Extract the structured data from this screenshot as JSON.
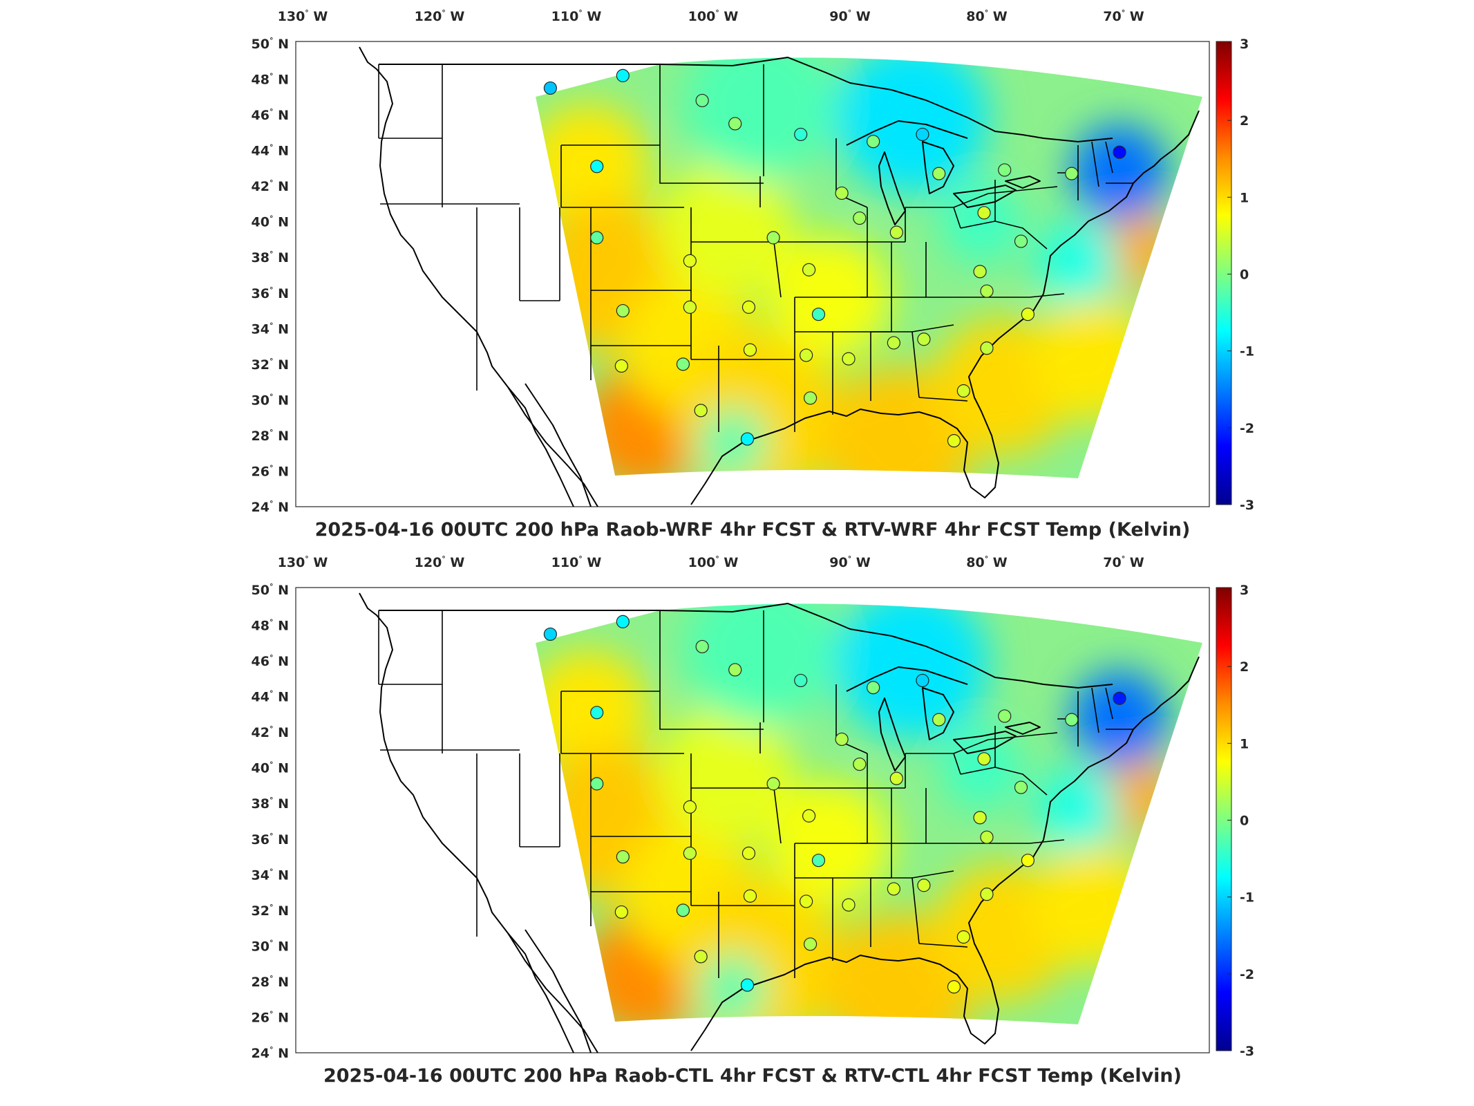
{
  "colorbar": {
    "ticks": [
      "3",
      "2",
      "1",
      "0",
      "-1",
      "-2",
      "-3"
    ],
    "colors": [
      "#800000",
      "#ff0000",
      "#ff8c00",
      "#ffff00",
      "#80ff80",
      "#00ffff",
      "#0080ff",
      "#0000ff",
      "#00008f"
    ]
  },
  "axes": {
    "lon_labels": [
      {
        "deg": "130",
        "hem": "W"
      },
      {
        "deg": "120",
        "hem": "W"
      },
      {
        "deg": "110",
        "hem": "W"
      },
      {
        "deg": "100",
        "hem": "W"
      },
      {
        "deg": "90",
        "hem": "W"
      },
      {
        "deg": "80",
        "hem": "W"
      },
      {
        "deg": "70",
        "hem": "W"
      }
    ],
    "lat_labels": [
      {
        "deg": "50",
        "hem": "N"
      },
      {
        "deg": "48",
        "hem": "N"
      },
      {
        "deg": "46",
        "hem": "N"
      },
      {
        "deg": "44",
        "hem": "N"
      },
      {
        "deg": "42",
        "hem": "N"
      },
      {
        "deg": "40",
        "hem": "N"
      },
      {
        "deg": "38",
        "hem": "N"
      },
      {
        "deg": "36",
        "hem": "N"
      },
      {
        "deg": "34",
        "hem": "N"
      },
      {
        "deg": "32",
        "hem": "N"
      },
      {
        "deg": "30",
        "hem": "N"
      },
      {
        "deg": "28",
        "hem": "N"
      },
      {
        "deg": "26",
        "hem": "N"
      },
      {
        "deg": "24",
        "hem": "N"
      }
    ]
  },
  "panels": [
    {
      "title": "2025-04-16 00UTC 200 hPa Raob-WRF 4hr FCST & RTV-WRF 4hr FCST Temp (Kelvin)",
      "stations": [
        {
          "lon": -111.9,
          "lat": 47.5,
          "value": -1.1
        },
        {
          "lon": -106.6,
          "lat": 48.2,
          "value": -0.8
        },
        {
          "lon": -100.8,
          "lat": 46.8,
          "value": -0.1
        },
        {
          "lon": -98.4,
          "lat": 45.5,
          "value": 0.1
        },
        {
          "lon": -93.6,
          "lat": 44.9,
          "value": -0.5
        },
        {
          "lon": -108.5,
          "lat": 43.1,
          "value": -0.7
        },
        {
          "lon": -88.3,
          "lat": 44.5,
          "value": 0.0
        },
        {
          "lon": -84.7,
          "lat": 44.9,
          "value": -1.0
        },
        {
          "lon": -83.5,
          "lat": 42.7,
          "value": 0.2
        },
        {
          "lon": -78.7,
          "lat": 42.9,
          "value": 0.0
        },
        {
          "lon": -73.8,
          "lat": 42.7,
          "value": 0.1
        },
        {
          "lon": -70.3,
          "lat": 43.9,
          "value": -2.2
        },
        {
          "lon": -90.6,
          "lat": 41.6,
          "value": 0.3
        },
        {
          "lon": -108.5,
          "lat": 39.1,
          "value": -0.2
        },
        {
          "lon": -101.7,
          "lat": 37.8,
          "value": 0.6
        },
        {
          "lon": -95.6,
          "lat": 39.1,
          "value": 0.2
        },
        {
          "lon": -89.3,
          "lat": 40.2,
          "value": 0.2
        },
        {
          "lon": -86.6,
          "lat": 39.4,
          "value": 0.4
        },
        {
          "lon": -80.2,
          "lat": 40.5,
          "value": 0.5
        },
        {
          "lon": -77.5,
          "lat": 38.9,
          "value": 0.0
        },
        {
          "lon": -80.5,
          "lat": 37.2,
          "value": 0.4
        },
        {
          "lon": -93.0,
          "lat": 37.3,
          "value": 0.5
        },
        {
          "lon": -106.6,
          "lat": 35.0,
          "value": 0.2
        },
        {
          "lon": -101.7,
          "lat": 35.2,
          "value": 0.5
        },
        {
          "lon": -97.4,
          "lat": 35.2,
          "value": 0.6
        },
        {
          "lon": -92.3,
          "lat": 34.8,
          "value": -0.4
        },
        {
          "lon": -86.8,
          "lat": 33.2,
          "value": 0.4
        },
        {
          "lon": -84.6,
          "lat": 33.4,
          "value": 0.4
        },
        {
          "lon": -80.0,
          "lat": 36.1,
          "value": 0.3
        },
        {
          "lon": -77.0,
          "lat": 34.8,
          "value": 0.6
        },
        {
          "lon": -80.0,
          "lat": 32.9,
          "value": 0.4
        },
        {
          "lon": -106.7,
          "lat": 31.9,
          "value": 0.6
        },
        {
          "lon": -102.2,
          "lat": 32.0,
          "value": 0.0
        },
        {
          "lon": -97.3,
          "lat": 32.8,
          "value": 0.6
        },
        {
          "lon": -93.2,
          "lat": 32.5,
          "value": 0.5
        },
        {
          "lon": -90.1,
          "lat": 32.3,
          "value": 0.5
        },
        {
          "lon": -100.9,
          "lat": 29.4,
          "value": 0.5
        },
        {
          "lon": -97.5,
          "lat": 27.8,
          "value": -0.8
        },
        {
          "lon": -92.9,
          "lat": 30.1,
          "value": 0.2
        },
        {
          "lon": -81.7,
          "lat": 30.5,
          "value": 0.5
        },
        {
          "lon": -82.4,
          "lat": 27.7,
          "value": 0.6
        }
      ]
    },
    {
      "title": "2025-04-16 00UTC 200 hPa Raob-CTL 4hr FCST & RTV-CTL 4hr FCST Temp (Kelvin)",
      "stations": [
        {
          "lon": -111.9,
          "lat": 47.5,
          "value": -1.0
        },
        {
          "lon": -106.6,
          "lat": 48.2,
          "value": -0.8
        },
        {
          "lon": -100.8,
          "lat": 46.8,
          "value": 0.0
        },
        {
          "lon": -98.4,
          "lat": 45.5,
          "value": 0.2
        },
        {
          "lon": -93.6,
          "lat": 44.9,
          "value": -0.4
        },
        {
          "lon": -108.5,
          "lat": 43.1,
          "value": -0.6
        },
        {
          "lon": -88.3,
          "lat": 44.5,
          "value": 0.0
        },
        {
          "lon": -84.7,
          "lat": 44.9,
          "value": -1.0
        },
        {
          "lon": -83.5,
          "lat": 42.7,
          "value": 0.3
        },
        {
          "lon": -78.7,
          "lat": 42.9,
          "value": 0.1
        },
        {
          "lon": -73.8,
          "lat": 42.7,
          "value": 0.0
        },
        {
          "lon": -70.3,
          "lat": 43.9,
          "value": -2.1
        },
        {
          "lon": -90.6,
          "lat": 41.6,
          "value": 0.3
        },
        {
          "lon": -108.5,
          "lat": 39.1,
          "value": -0.1
        },
        {
          "lon": -101.7,
          "lat": 37.8,
          "value": 0.6
        },
        {
          "lon": -95.6,
          "lat": 39.1,
          "value": 0.3
        },
        {
          "lon": -89.3,
          "lat": 40.2,
          "value": 0.3
        },
        {
          "lon": -86.6,
          "lat": 39.4,
          "value": 0.5
        },
        {
          "lon": -80.2,
          "lat": 40.5,
          "value": 0.5
        },
        {
          "lon": -77.5,
          "lat": 38.9,
          "value": 0.1
        },
        {
          "lon": -80.5,
          "lat": 37.2,
          "value": 0.5
        },
        {
          "lon": -93.0,
          "lat": 37.3,
          "value": 0.6
        },
        {
          "lon": -106.6,
          "lat": 35.0,
          "value": 0.2
        },
        {
          "lon": -101.7,
          "lat": 35.2,
          "value": 0.4
        },
        {
          "lon": -97.4,
          "lat": 35.2,
          "value": 0.6
        },
        {
          "lon": -92.3,
          "lat": 34.8,
          "value": -0.3
        },
        {
          "lon": -86.8,
          "lat": 33.2,
          "value": 0.5
        },
        {
          "lon": -84.6,
          "lat": 33.4,
          "value": 0.5
        },
        {
          "lon": -80.0,
          "lat": 36.1,
          "value": 0.4
        },
        {
          "lon": -77.0,
          "lat": 34.8,
          "value": 0.7
        },
        {
          "lon": -80.0,
          "lat": 32.9,
          "value": 0.5
        },
        {
          "lon": -106.7,
          "lat": 31.9,
          "value": 0.6
        },
        {
          "lon": -102.2,
          "lat": 32.0,
          "value": -0.1
        },
        {
          "lon": -97.3,
          "lat": 32.8,
          "value": 0.6
        },
        {
          "lon": -93.2,
          "lat": 32.5,
          "value": 0.6
        },
        {
          "lon": -90.1,
          "lat": 32.3,
          "value": 0.5
        },
        {
          "lon": -100.9,
          "lat": 29.4,
          "value": 0.5
        },
        {
          "lon": -97.5,
          "lat": 27.8,
          "value": -0.7
        },
        {
          "lon": -92.9,
          "lat": 30.1,
          "value": 0.3
        },
        {
          "lon": -81.7,
          "lat": 30.5,
          "value": 0.6
        },
        {
          "lon": -82.4,
          "lat": 27.7,
          "value": 0.7
        }
      ]
    }
  ]
}
